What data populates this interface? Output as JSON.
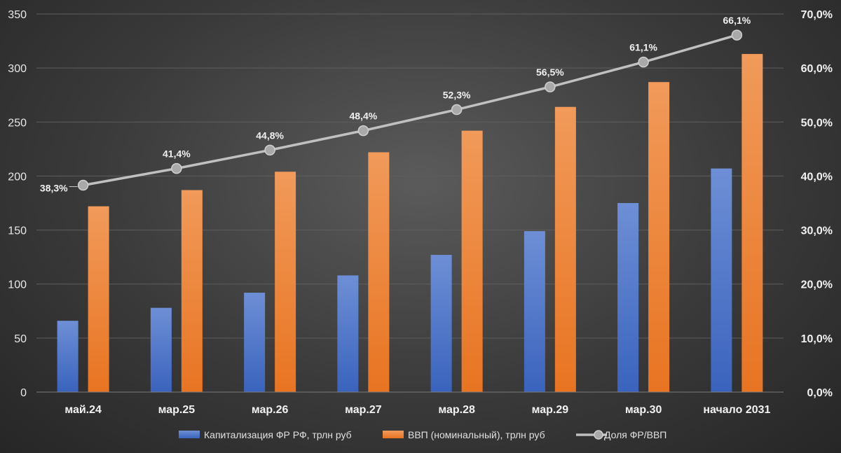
{
  "chart_data": {
    "type": "bar",
    "categories": [
      "май.24",
      "мар.25",
      "мар.26",
      "мар.27",
      "мар.28",
      "мар.29",
      "мар.30",
      "начало 2031"
    ],
    "series": [
      {
        "name": "Капитализация ФР РФ, трлн руб",
        "type": "bar",
        "axis": "left",
        "color": "#4472c4",
        "values": [
          66,
          78,
          92,
          108,
          127,
          149,
          175,
          207
        ]
      },
      {
        "name": "ВВП (номинальный), трлн руб",
        "type": "bar",
        "axis": "left",
        "color": "#ed7d31",
        "values": [
          172,
          187,
          204,
          222,
          242,
          264,
          287,
          313
        ]
      },
      {
        "name": "Доля ФР/ВВП",
        "type": "line",
        "axis": "right",
        "color": "#c0c0c0",
        "values": [
          38.3,
          41.4,
          44.8,
          48.4,
          52.3,
          56.5,
          61.1,
          66.1
        ],
        "labels": [
          "38,3%",
          "41,4%",
          "44,8%",
          "48,4%",
          "52,3%",
          "56,5%",
          "61,1%",
          "66,1%"
        ]
      }
    ],
    "y_left": {
      "min": 0,
      "max": 350,
      "step": 50,
      "ticks": [
        "0",
        "50",
        "100",
        "150",
        "200",
        "250",
        "300",
        "350"
      ]
    },
    "y_right": {
      "min": 0,
      "max": 70,
      "step": 10,
      "ticks": [
        "0,0%",
        "10,0%",
        "20,0%",
        "30,0%",
        "40,0%",
        "50,0%",
        "60,0%",
        "70,0%"
      ]
    },
    "grid": true,
    "legend_position": "bottom"
  }
}
